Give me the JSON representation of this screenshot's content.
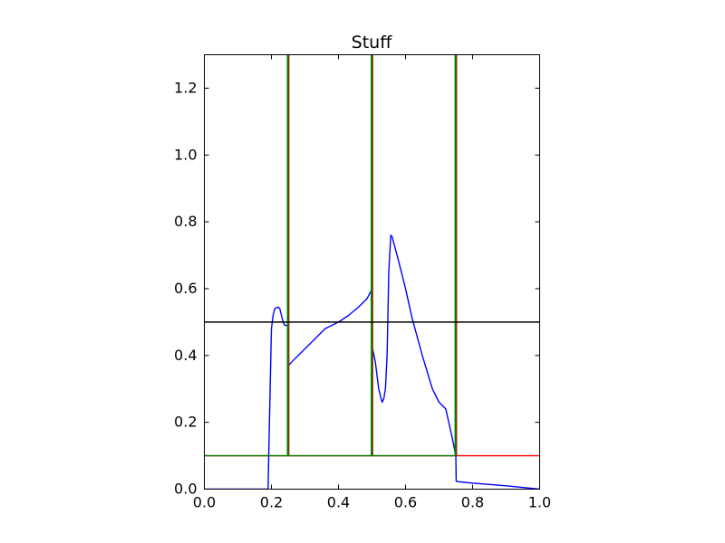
{
  "chart_data": {
    "type": "line",
    "title": "Stuff",
    "xlabel": "",
    "ylabel": "",
    "xlim": [
      0.0,
      1.0
    ],
    "ylim": [
      0.0,
      1.3
    ],
    "x_ticks": [
      "0.0",
      "0.2",
      "0.4",
      "0.6",
      "0.8",
      "1.0"
    ],
    "y_ticks": [
      "0.0",
      "0.2",
      "0.4",
      "0.6",
      "0.8",
      "1.0",
      "1.2"
    ],
    "grid": false,
    "legend": "none",
    "series": [
      {
        "color": "#0000ff",
        "x": [
          0.0,
          0.04,
          0.1,
          0.15,
          0.19,
          0.193,
          0.2,
          0.205,
          0.21,
          0.22,
          0.225,
          0.23,
          0.235,
          0.24,
          0.245,
          0.25,
          0.251,
          0.26,
          0.3,
          0.33,
          0.36,
          0.4,
          0.43,
          0.46,
          0.485,
          0.498,
          0.5,
          0.51,
          0.52,
          0.53,
          0.535,
          0.54,
          0.545,
          0.55,
          0.556,
          0.56,
          0.58,
          0.6,
          0.62,
          0.65,
          0.68,
          0.7,
          0.72,
          0.74,
          0.75,
          0.751,
          0.76,
          0.8,
          0.9,
          1.0
        ],
        "y": [
          0.0,
          0.0,
          0.0,
          0.0,
          0.0,
          0.15,
          0.48,
          0.52,
          0.54,
          0.545,
          0.54,
          0.52,
          0.5,
          0.49,
          0.49,
          0.49,
          0.37,
          0.38,
          0.42,
          0.45,
          0.48,
          0.5,
          0.52,
          0.545,
          0.57,
          0.595,
          0.43,
          0.38,
          0.3,
          0.26,
          0.27,
          0.3,
          0.4,
          0.65,
          0.76,
          0.755,
          0.68,
          0.6,
          0.51,
          0.4,
          0.3,
          0.26,
          0.24,
          0.15,
          0.1,
          0.024,
          0.022,
          0.018,
          0.01,
          0.0
        ]
      },
      {
        "color": "#ff0000",
        "x": [
          0.0,
          0.25,
          0.25,
          0.252,
          0.252,
          0.5,
          0.5,
          0.502,
          0.502,
          0.75,
          0.75,
          0.752,
          0.752,
          1.0
        ],
        "y": [
          0.1,
          0.1,
          1.3,
          1.3,
          0.1,
          0.1,
          1.3,
          1.3,
          0.1,
          0.1,
          1.3,
          1.3,
          0.1,
          0.1
        ]
      },
      {
        "color": "#008000",
        "x": [
          0.0,
          0.248,
          0.248,
          0.25,
          0.25,
          0.498,
          0.498,
          0.5,
          0.5,
          0.748,
          0.748,
          0.75,
          0.75
        ],
        "y": [
          0.1,
          0.1,
          1.3,
          1.3,
          0.1,
          0.1,
          1.3,
          1.3,
          0.1,
          0.1,
          1.3,
          1.3,
          0.1
        ]
      },
      {
        "color": "#000000",
        "x": [
          0.0,
          1.0
        ],
        "y": [
          0.5,
          0.5
        ]
      }
    ]
  }
}
